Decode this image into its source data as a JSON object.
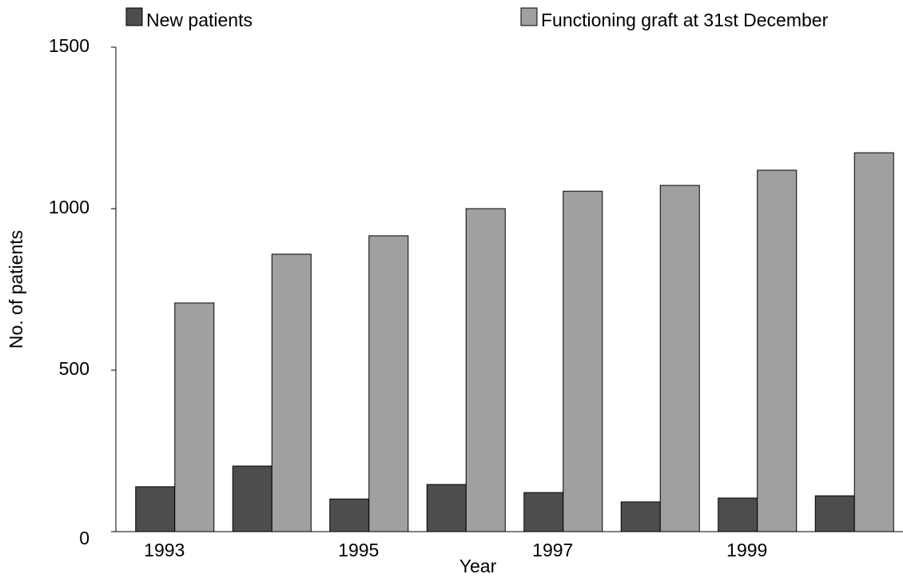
{
  "chart_data": {
    "type": "bar",
    "x_label": "Year",
    "y_label": "No. of patients",
    "categories": [
      "1993",
      null,
      "1995",
      null,
      "1997",
      null,
      "1999",
      null
    ],
    "series": [
      {
        "name": "New patients",
        "color": "#4d4d4d",
        "values": [
          139,
          203,
          101,
          146,
          121,
          92,
          104,
          111
        ]
      },
      {
        "name": "Functioning graft at 31st December",
        "color": "#a0a0a0",
        "values": [
          708,
          859,
          916,
          1000,
          1054,
          1072,
          1119,
          1173
        ]
      }
    ],
    "ylim": [
      0,
      1500
    ],
    "yticks": [
      0,
      500,
      1000,
      1500
    ],
    "grid": false
  }
}
